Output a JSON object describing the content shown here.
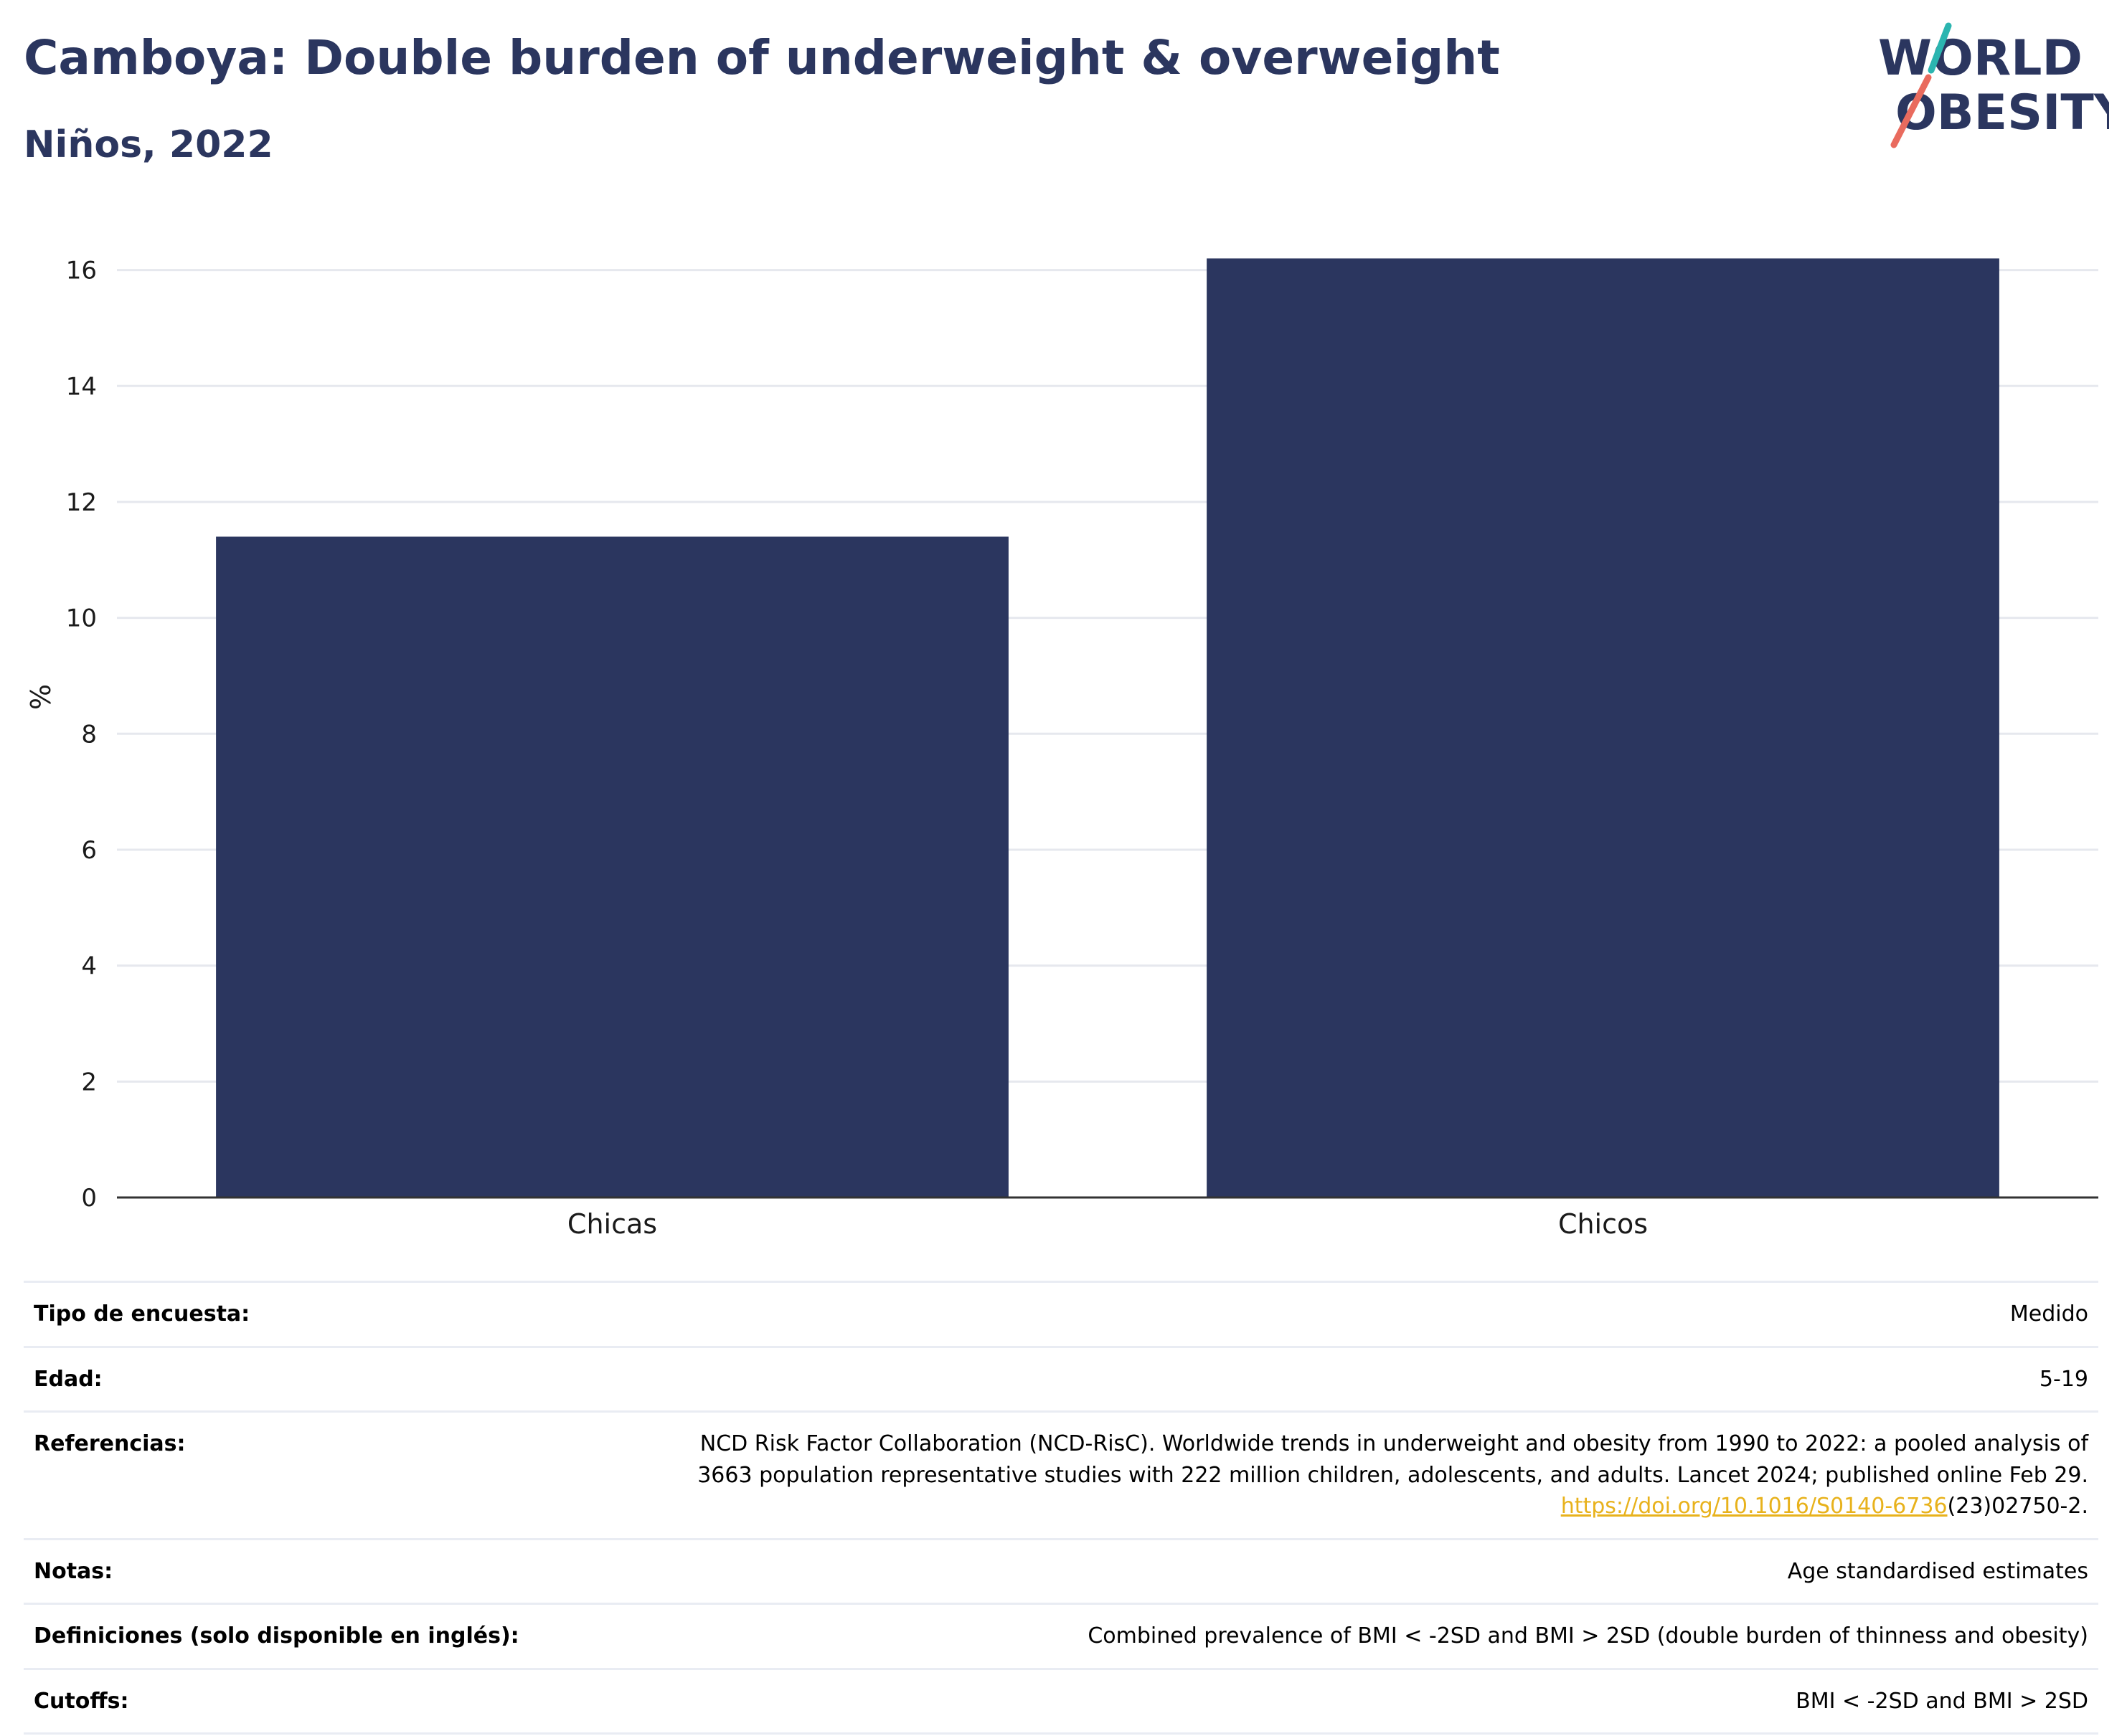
{
  "header": {
    "title": "Camboya: Double burden of underweight & overweight",
    "subtitle": "Niños, 2022"
  },
  "logo": {
    "line1": "WORLD",
    "line2": "OBESITY",
    "accent_teal": "#2bb5b0",
    "accent_coral": "#e96b5e",
    "text_color": "#2b365f"
  },
  "chart_data": {
    "type": "bar",
    "categories": [
      "Chicas",
      "Chicos"
    ],
    "values": [
      11.4,
      16.2
    ],
    "title": "Camboya: Double burden of underweight & overweight",
    "subtitle": "Niños, 2022",
    "xlabel": "",
    "ylabel": "%",
    "ylim": [
      0,
      16.7
    ],
    "yticks": [
      0,
      2,
      4,
      6,
      8,
      10,
      12,
      14,
      16
    ],
    "grid": true,
    "bar_color": "#2b365f"
  },
  "info": {
    "survey_label": "Tipo de encuesta:",
    "survey_value": "Medido",
    "age_label": "Edad:",
    "age_value": "5-19",
    "refs_label": "Referencias:",
    "refs_line1": "NCD Risk Factor Collaboration (NCD-RisC). Worldwide trends in underweight and obesity from 1990 to 2022: a pooled analysis of",
    "refs_line2": "3663 population representative studies with 222 million children, adolescents, and adults. Lancet 2024; published online Feb 29.",
    "refs_doi": "https://doi.org/10.1016/S0140-6736",
    "refs_doi_tail": "(23)02750-2.",
    "notes_label": "Notas:",
    "notes_value": "Age standardised estimates",
    "defs_label": "Definiciones (solo disponible en inglés):",
    "defs_value": "Combined prevalence of BMI < -2SD and BMI > 2SD (double burden of thinness and obesity)",
    "cutoffs_label": "Cutoffs:",
    "cutoffs_value": "BMI < -2SD and BMI > 2SD"
  }
}
